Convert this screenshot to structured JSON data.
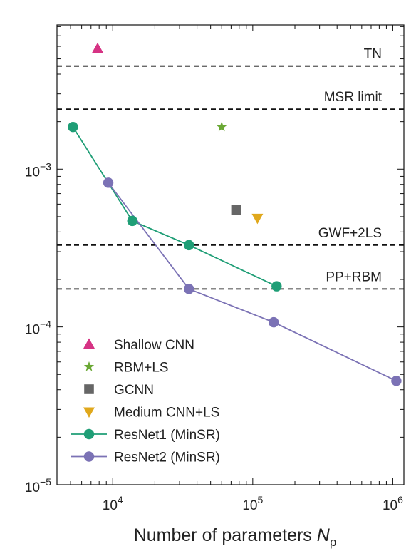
{
  "chart_data": {
    "type": "scatter",
    "xlabel": "Number of parameters",
    "xlabel_symbol": "N",
    "xlabel_sub": "p",
    "ylabel": "",
    "xscale": "log",
    "yscale": "log",
    "xlim": [
      4000,
      1200000
    ],
    "ylim": [
      1e-05,
      0.0082
    ],
    "x_ticks": [
      {
        "value": 10000,
        "base": "10",
        "exp": "4"
      },
      {
        "value": 100000,
        "base": "10",
        "exp": "5"
      },
      {
        "value": 1000000,
        "base": "10",
        "exp": "6"
      }
    ],
    "y_ticks": [
      {
        "value": 0.001,
        "base": "10",
        "exp": "−3"
      },
      {
        "value": 0.0001,
        "base": "10",
        "exp": "−4"
      },
      {
        "value": 1e-05,
        "base": "10",
        "exp": "−5"
      }
    ],
    "reference_lines": [
      {
        "label": "TN",
        "y": 0.0045
      },
      {
        "label": "MSR limit",
        "y": 0.0024
      },
      {
        "label": "GWF+2LS",
        "y": 0.00033
      },
      {
        "label": "PP+RBM",
        "y": 0.000174
      }
    ],
    "series": [
      {
        "name": "Shallow CNN",
        "marker": "triangle-up",
        "color": "#d63384",
        "line": false,
        "points": [
          [
            7800,
            0.0058
          ]
        ]
      },
      {
        "name": "RBM+LS",
        "marker": "star",
        "color": "#6aa834",
        "line": false,
        "points": [
          [
            60000,
            0.00185
          ]
        ]
      },
      {
        "name": "GCNN",
        "marker": "square",
        "color": "#666666",
        "line": false,
        "points": [
          [
            76000,
            0.00055
          ]
        ]
      },
      {
        "name": "Medium CNN+LS",
        "marker": "triangle-down",
        "color": "#e0a81c",
        "line": false,
        "points": [
          [
            108000,
            0.00049
          ]
        ]
      },
      {
        "name": "ResNet1 (MinSR)",
        "marker": "circle",
        "color": "#1f9e76",
        "line": true,
        "points": [
          [
            5200,
            0.00185
          ],
          [
            13800,
            0.00047
          ],
          [
            35000,
            0.00033
          ],
          [
            148000,
            0.000181
          ]
        ]
      },
      {
        "name": "ResNet2 (MinSR)",
        "marker": "circle",
        "color": "#7b72b5",
        "line": true,
        "points": [
          [
            9300,
            0.00082
          ],
          [
            35000,
            0.000174
          ],
          [
            141000,
            0.000107
          ],
          [
            1060000,
            4.55e-05
          ]
        ]
      }
    ],
    "legend_position": "bottom-left",
    "grid": false
  }
}
